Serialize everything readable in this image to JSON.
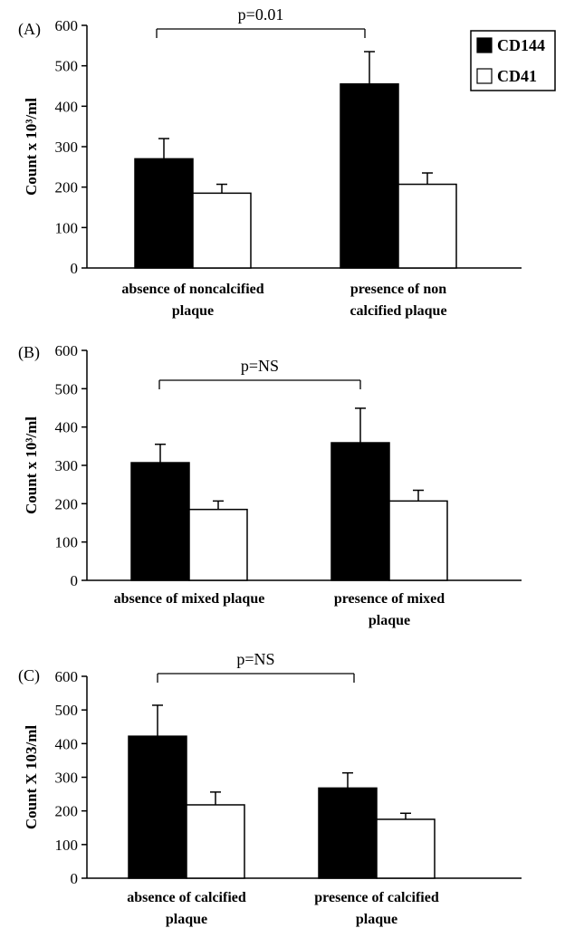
{
  "legend": {
    "entries": [
      {
        "label": "CD144",
        "color": "#000000"
      },
      {
        "label": "CD41",
        "color": "#ffffff"
      }
    ]
  },
  "chart_data": [
    {
      "type": "bar",
      "panel_label": "(A)",
      "ylabel": "Count x 10³/ml",
      "ylim": [
        0,
        600
      ],
      "yticks": [
        0,
        100,
        200,
        300,
        400,
        500,
        600
      ],
      "categories": [
        [
          "absence of noncalcified",
          "plaque"
        ],
        [
          "presence of non",
          "calcified plaque"
        ]
      ],
      "series": [
        {
          "name": "CD144",
          "values": [
            270,
            455
          ],
          "error": [
            50,
            80
          ],
          "color": "#000000"
        },
        {
          "name": "CD41",
          "values": [
            185,
            207
          ],
          "error": [
            22,
            28
          ],
          "color": "#ffffff"
        }
      ],
      "annotation": "p=0.01"
    },
    {
      "type": "bar",
      "panel_label": "(B)",
      "ylabel": "Count x 10³/ml",
      "ylim": [
        0,
        600
      ],
      "yticks": [
        0,
        100,
        200,
        300,
        400,
        500,
        600
      ],
      "categories": [
        [
          "absence of mixed plaque"
        ],
        [
          "presence of mixed",
          "plaque"
        ]
      ],
      "series": [
        {
          "name": "CD144",
          "values": [
            307,
            359
          ],
          "error": [
            48,
            90
          ],
          "color": "#000000"
        },
        {
          "name": "CD41",
          "values": [
            185,
            207
          ],
          "error": [
            22,
            28
          ],
          "color": "#ffffff"
        }
      ],
      "annotation": "p=NS"
    },
    {
      "type": "bar",
      "panel_label": "(C)",
      "ylabel": "Count X 103/ml",
      "ylim": [
        0,
        600
      ],
      "yticks": [
        0,
        100,
        200,
        300,
        400,
        500,
        600
      ],
      "categories": [
        [
          "absence of calcified",
          "plaque"
        ],
        [
          "presence of calcified",
          "plaque"
        ]
      ],
      "series": [
        {
          "name": "CD144",
          "values": [
            422,
            268
          ],
          "error": [
            92,
            45
          ],
          "color": "#000000"
        },
        {
          "name": "CD41",
          "values": [
            218,
            175
          ],
          "error": [
            38,
            18
          ],
          "color": "#ffffff"
        }
      ],
      "annotation": "p=NS"
    }
  ]
}
